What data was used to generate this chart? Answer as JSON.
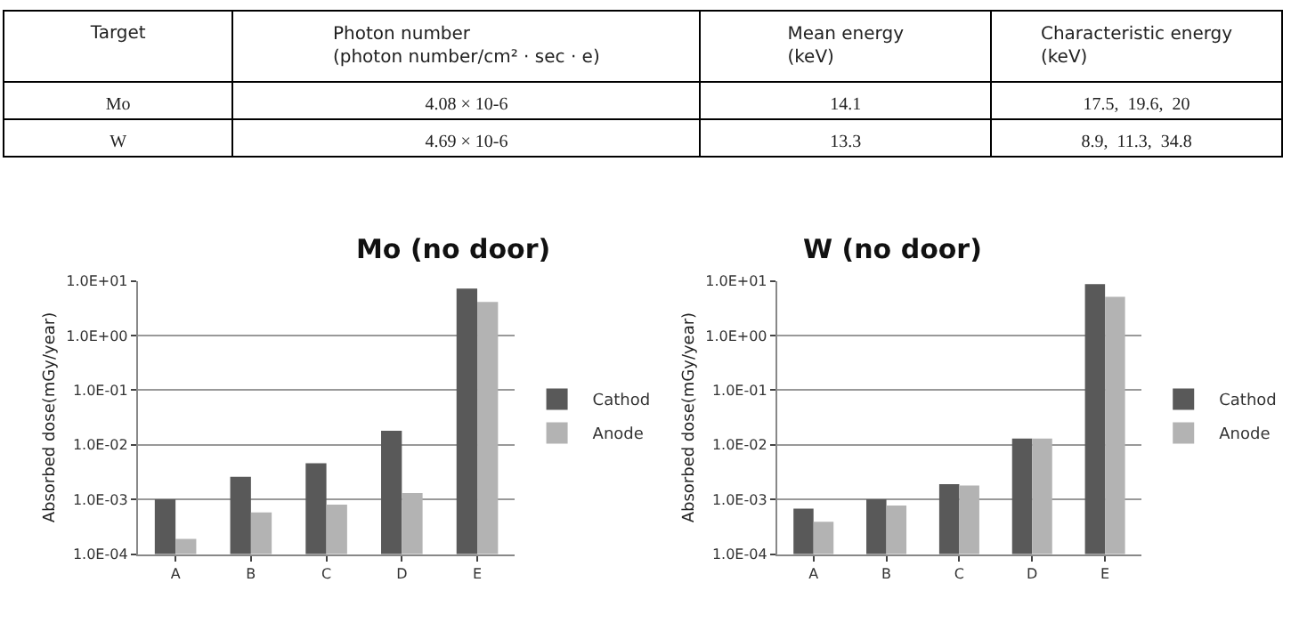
{
  "chart_data": [
    {
      "type": "other",
      "annotations": [
        "Target",
        "Photon number\n(photon number/cm² · sec · e)",
        "Mean energy\n(keV)",
        "Characteristic energy\n(keV)",
        "Mo",
        "4.08 × 10-6",
        "14.1",
        "17.5,  19.6,  20",
        "W",
        "4.69 × 10-6",
        "13.3",
        "8.9,  11.3,  34.8"
      ]
    },
    {
      "type": "bar",
      "title": "Mo (no door)",
      "ylabel": "Absorbed dose(mGy/year)",
      "categories": [
        "A",
        "B",
        "C",
        "D",
        "E"
      ],
      "series": [
        {
          "name": "Cathod",
          "color": "#595959",
          "values": [
            0.001,
            0.0026,
            0.0046,
            0.018,
            7.2
          ]
        },
        {
          "name": "Anode",
          "color": "#b3b3b3",
          "values": [
            0.00019,
            0.00058,
            0.0008,
            0.0013,
            4.1
          ]
        }
      ],
      "log": "y",
      "ylim": [
        0.0001,
        10
      ],
      "yticks": [
        {
          "value": 0.0001,
          "label": "1.0E-04"
        },
        {
          "value": 0.001,
          "label": "1.0E-03"
        },
        {
          "value": 0.01,
          "label": "1.0E-02"
        },
        {
          "value": 0.1,
          "label": "1.0E-01"
        },
        {
          "value": 1,
          "label": "1.0E+00"
        },
        {
          "value": 10,
          "label": "1.0E+01"
        }
      ],
      "grid": "y",
      "legend": "right"
    },
    {
      "type": "bar",
      "title": "W (no door)",
      "ylabel": "Absorbed dose(mGy/year)",
      "categories": [
        "A",
        "B",
        "C",
        "D",
        "E"
      ],
      "series": [
        {
          "name": "Cathod",
          "color": "#595959",
          "values": [
            0.00068,
            0.001,
            0.0019,
            0.013,
            8.7
          ]
        },
        {
          "name": "Anode",
          "color": "#b3b3b3",
          "values": [
            0.00039,
            0.00077,
            0.0018,
            0.013,
            5.1
          ]
        }
      ],
      "log": "y",
      "ylim": [
        0.0001,
        10
      ],
      "yticks": [
        {
          "value": 0.0001,
          "label": "1.0E-04"
        },
        {
          "value": 0.001,
          "label": "1.0E-03"
        },
        {
          "value": 0.01,
          "label": "1.0E-02"
        },
        {
          "value": 0.1,
          "label": "1.0E-01"
        },
        {
          "value": 1,
          "label": "1.0E+00"
        },
        {
          "value": 10,
          "label": "1.0E+01"
        }
      ],
      "grid": "y",
      "legend": "right"
    }
  ]
}
